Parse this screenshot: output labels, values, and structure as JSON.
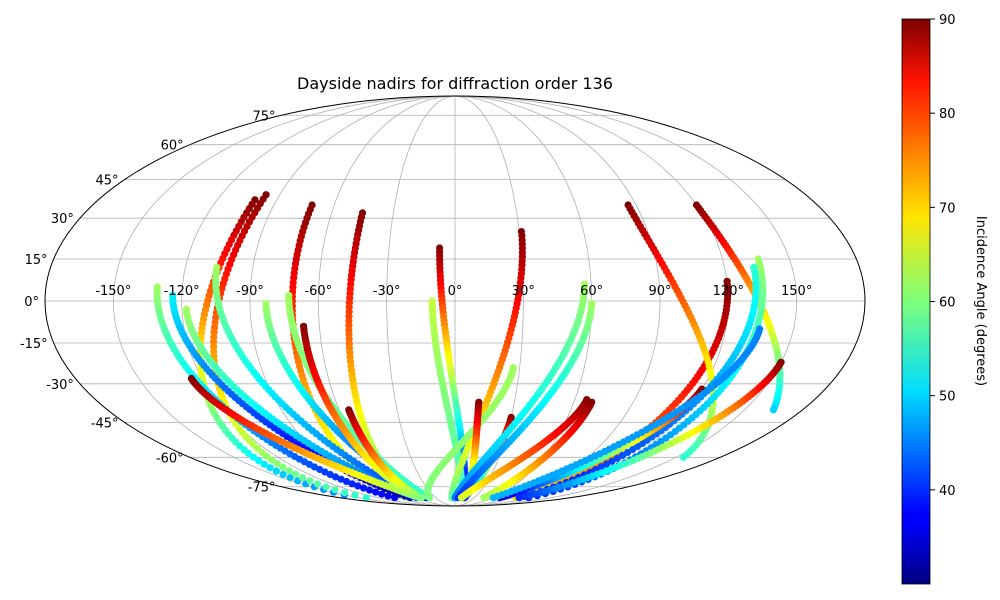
{
  "chart_data": {
    "type": "scatter",
    "projection": "mollweide",
    "title": "Dayside nadirs for diffraction order 136",
    "lon_ticks": [
      "-150°",
      "-120°",
      "-90°",
      "-60°",
      "-30°",
      "0°",
      "30°",
      "60°",
      "90°",
      "120°",
      "150°"
    ],
    "lat_ticks": [
      "75°",
      "60°",
      "45°",
      "30°",
      "15°",
      "0°",
      "-15°",
      "-30°",
      "-45°",
      "-60°",
      "-75°"
    ],
    "grid": true,
    "colorbar": {
      "label": "Incidence Angle (degrees)",
      "range": [
        30,
        90
      ],
      "ticks": [
        "40",
        "50",
        "60",
        "70",
        "80",
        "90"
      ],
      "colormap": "jet"
    },
    "tracks": [
      {
        "start": [
          -101,
          37
        ],
        "end": [
          -149,
          -80
        ],
        "c_start": 90,
        "c_end": 45
      },
      {
        "start": [
          -97,
          39
        ],
        "end": [
          -138,
          -82
        ],
        "c_start": 90,
        "c_end": 55
      },
      {
        "start": [
          -71,
          35
        ],
        "end": [
          -74,
          -82
        ],
        "c_start": 90,
        "c_end": 60
      },
      {
        "start": [
          -45,
          32
        ],
        "end": [
          -55,
          -82
        ],
        "c_start": 90,
        "c_end": 55
      },
      {
        "start": [
          -106,
          12
        ],
        "end": [
          -55,
          -82
        ],
        "c_start": 62,
        "c_end": 40
      },
      {
        "start": [
          -83,
          -1
        ],
        "end": [
          -45,
          -82
        ],
        "c_start": 62,
        "c_end": 37
      },
      {
        "start": [
          -73,
          2
        ],
        "end": [
          -40,
          -82
        ],
        "c_start": 62,
        "c_end": 55
      },
      {
        "start": [
          -131,
          5
        ],
        "end": [
          -94,
          -82
        ],
        "c_start": 62,
        "c_end": 37
      },
      {
        "start": [
          -124,
          2
        ],
        "end": [
          -70,
          -82
        ],
        "c_start": 52,
        "c_end": 32
      },
      {
        "start": [
          -118,
          -3
        ],
        "end": [
          -60,
          -82
        ],
        "c_start": 62,
        "c_end": 42
      },
      {
        "start": [
          -125,
          -28
        ],
        "end": [
          -55,
          -82
        ],
        "c_start": 90,
        "c_end": 60
      },
      {
        "start": [
          -67,
          -9
        ],
        "end": [
          -55,
          -82
        ],
        "c_start": 90,
        "c_end": 60
      },
      {
        "start": [
          -55,
          -40
        ],
        "end": [
          -52,
          -82
        ],
        "c_start": 90,
        "c_end": 60
      },
      {
        "start": [
          -7,
          19
        ],
        "end": [
          12,
          -82
        ],
        "c_start": 90,
        "c_end": 32
      },
      {
        "start": [
          -10,
          0
        ],
        "end": [
          10,
          -82
        ],
        "c_start": 64,
        "c_end": 55
      },
      {
        "start": [
          31,
          25
        ],
        "end": [
          -5,
          -82
        ],
        "c_start": 90,
        "c_end": 58
      },
      {
        "start": [
          27,
          -24
        ],
        "end": [
          -40,
          -82
        ],
        "c_start": 62,
        "c_end": 60
      },
      {
        "start": [
          12,
          -37
        ],
        "end": [
          15,
          -82
        ],
        "c_start": 90,
        "c_end": 52
      },
      {
        "start": [
          30,
          -43
        ],
        "end": [
          15,
          -82
        ],
        "c_start": 90,
        "c_end": 40
      },
      {
        "start": [
          57,
          6
        ],
        "end": [
          0,
          -82
        ],
        "c_start": 62,
        "c_end": 45
      },
      {
        "start": [
          60,
          -1
        ],
        "end": [
          5,
          -82
        ],
        "c_start": 62,
        "c_end": 40
      },
      {
        "start": [
          66,
          -36
        ],
        "end": [
          10,
          -82
        ],
        "c_start": 90,
        "c_end": 65
      },
      {
        "start": [
          69,
          -37
        ],
        "end": [
          45,
          -82
        ],
        "c_start": 90,
        "c_end": 62
      },
      {
        "start": [
          120,
          7
        ],
        "end": [
          95,
          -82
        ],
        "c_start": 90,
        "c_end": 70
      },
      {
        "start": [
          86,
          35
        ],
        "end": [
          155,
          -60
        ],
        "c_start": 90,
        "c_end": 55
      },
      {
        "start": [
          120,
          35
        ],
        "end": [
          165,
          -40
        ],
        "c_start": 90,
        "c_end": 50
      },
      {
        "start": [
          136,
          15
        ],
        "end": [
          115,
          -82
        ],
        "c_start": 62,
        "c_end": 40
      },
      {
        "start": [
          133,
          12
        ],
        "end": [
          100,
          -82
        ],
        "c_start": 55,
        "c_end": 38
      },
      {
        "start": [
          120,
          -32
        ],
        "end": [
          70,
          -82
        ],
        "c_start": 90,
        "c_end": 34
      },
      {
        "start": [
          150,
          -22
        ],
        "end": [
          100,
          -82
        ],
        "c_start": 90,
        "c_end": 40
      },
      {
        "start": [
          135,
          -10
        ],
        "end": [
          60,
          -82
        ],
        "c_start": 45,
        "c_end": 48
      }
    ]
  }
}
